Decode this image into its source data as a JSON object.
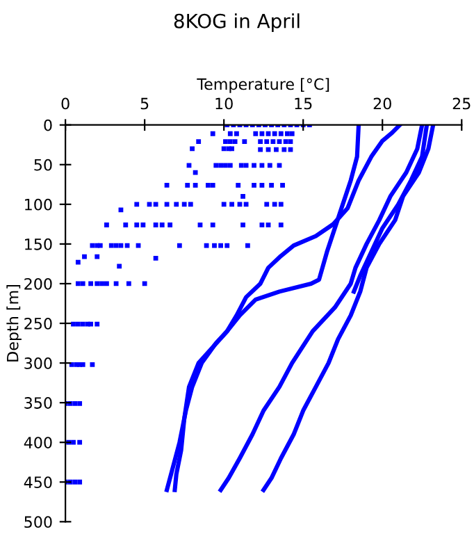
{
  "chart_data": {
    "type": "scatter",
    "title": "8KOG in April",
    "xlabel": "Temperature [°C]",
    "ylabel": "Depth [m]",
    "xlim": [
      0,
      25
    ],
    "xticks": [
      0,
      5,
      10,
      15,
      20,
      25
    ],
    "ylim": [
      500,
      0
    ],
    "yticks": [
      0,
      50,
      100,
      150,
      200,
      250,
      300,
      350,
      400,
      450,
      500
    ],
    "grid": false,
    "legend": false,
    "line_style": "solid",
    "series": [
      {
        "marker": "square",
        "color": "#0000ff",
        "x": [
          10.2,
          10.6,
          11.0,
          11.4,
          11.8,
          12.2,
          12.6,
          13.0,
          13.4,
          13.8,
          14.2,
          14.6,
          15.0,
          15.4,
          9.3,
          10.4,
          10.8,
          12.0,
          12.4,
          12.8,
          13.2,
          13.6,
          14.0,
          14.3,
          8.4,
          10.1,
          10.4,
          10.7,
          11.3,
          12.3,
          12.7,
          13.1,
          13.5,
          13.9,
          14.2,
          8.0,
          10.0,
          10.3,
          10.5,
          12.3,
          12.8,
          13.3,
          13.8,
          14.2,
          7.8,
          9.5,
          9.8,
          10.1,
          10.4,
          11.1,
          11.4,
          11.9,
          12.4,
          12.9,
          13.5,
          8.2,
          6.4,
          7.7,
          8.2,
          9.0,
          9.3,
          10.9,
          11.9,
          12.4,
          13.0,
          13.7,
          11.2,
          4.5,
          5.3,
          5.7,
          6.4,
          7.0,
          7.5,
          7.9,
          10.0,
          10.5,
          11.0,
          11.4,
          12.7,
          13.2,
          13.6,
          3.5,
          2.6,
          3.8,
          4.5,
          4.9,
          5.7,
          6.1,
          6.6,
          8.5,
          9.3,
          11.2,
          12.4,
          12.8,
          13.6,
          1.7,
          2.0,
          2.2,
          2.9,
          3.2,
          3.5,
          3.9,
          4.6,
          7.2,
          8.9,
          9.4,
          9.8,
          10.2,
          11.5,
          1.2,
          2.0,
          5.7,
          0.8,
          3.4,
          0.8,
          1.1,
          1.6,
          2.0,
          2.3,
          2.6,
          3.2,
          4.0,
          5.0,
          0.5,
          0.8,
          1.1,
          1.4,
          1.6,
          2.0,
          0.4,
          0.7,
          0.9,
          1.1,
          1.7,
          0.0,
          0.3,
          0.6,
          0.9,
          0.2,
          0.5,
          0.9,
          0.0,
          0.3,
          0.6,
          0.9
        ],
        "values": [
          0,
          0,
          0,
          0,
          0,
          0,
          0,
          0,
          0,
          0,
          0,
          0,
          0,
          0,
          11,
          11,
          11,
          11,
          11,
          11,
          11,
          11,
          11,
          11,
          21,
          21,
          21,
          21,
          21,
          21,
          21,
          21,
          21,
          21,
          21,
          30,
          30,
          30,
          30,
          31,
          31,
          31,
          31,
          31,
          51,
          51,
          51,
          51,
          51,
          51,
          51,
          51,
          51,
          51,
          51,
          60,
          76,
          76,
          76,
          76,
          76,
          76,
          76,
          76,
          76,
          76,
          90,
          100,
          100,
          100,
          100,
          100,
          100,
          100,
          100,
          100,
          100,
          100,
          100,
          100,
          100,
          107,
          126,
          126,
          126,
          126,
          126,
          126,
          126,
          126,
          126,
          126,
          126,
          126,
          126,
          152,
          152,
          152,
          152,
          152,
          152,
          152,
          152,
          152,
          152,
          152,
          152,
          152,
          152,
          166,
          166,
          168,
          173,
          178,
          200,
          200,
          200,
          200,
          200,
          200,
          200,
          200,
          200,
          251,
          251,
          251,
          251,
          251,
          251,
          302,
          302,
          302,
          302,
          302,
          351,
          351,
          351,
          351,
          400,
          400,
          400,
          450,
          450,
          450,
          450
        ]
      },
      {
        "type": "line",
        "color": "#0000ff",
        "x": [
          18.5,
          18.4,
          18.0,
          17.5,
          17.0,
          16.5,
          16.0,
          15.5,
          13.5,
          12.0,
          11.0,
          10.2,
          9.5,
          8.6,
          8.0,
          7.6,
          7.2,
          6.8,
          6.4
        ],
        "values": [
          0,
          40,
          70,
          100,
          130,
          160,
          195,
          200,
          210,
          220,
          240,
          260,
          275,
          300,
          330,
          360,
          400,
          430,
          460
        ]
      },
      {
        "type": "line",
        "color": "#0000ff",
        "x": [
          21.1,
          20.6,
          20.0,
          19.3,
          18.5,
          17.8,
          16.9,
          15.8,
          14.4,
          13.6,
          12.8,
          12.3,
          11.4,
          10.8,
          10.2,
          9.3,
          8.4,
          7.8,
          7.5,
          7.3,
          7.0,
          6.9
        ],
        "values": [
          0,
          10,
          20,
          40,
          70,
          105,
          125,
          140,
          152,
          165,
          180,
          200,
          217,
          240,
          260,
          280,
          300,
          330,
          370,
          410,
          440,
          460
        ]
      },
      {
        "type": "line",
        "color": "#0000ff",
        "x": [
          22.5,
          22.2,
          21.5,
          20.5,
          19.8,
          19.0,
          18.3,
          18.0,
          17.0,
          15.6,
          14.3,
          13.5,
          12.5,
          11.8,
          11.0,
          10.3,
          9.8
        ],
        "values": [
          0,
          30,
          60,
          90,
          120,
          150,
          180,
          200,
          230,
          260,
          300,
          330,
          360,
          390,
          420,
          445,
          460
        ]
      },
      {
        "type": "line",
        "color": "#0000ff",
        "x": [
          22.8,
          22.5,
          21.8,
          21.0,
          20.0,
          19.3,
          18.6,
          18.2
        ],
        "values": [
          0,
          40,
          70,
          100,
          130,
          160,
          190,
          210
        ]
      },
      {
        "type": "line",
        "color": "#0000ff",
        "x": [
          23.2,
          22.9,
          22.3,
          21.3,
          20.8,
          19.8,
          19.0,
          18.6,
          18.0,
          17.2,
          16.6,
          15.8,
          15.0,
          14.4,
          13.6,
          13.0,
          12.5
        ],
        "values": [
          0,
          30,
          60,
          90,
          120,
          150,
          180,
          210,
          240,
          270,
          300,
          330,
          360,
          390,
          420,
          445,
          460
        ]
      }
    ]
  }
}
